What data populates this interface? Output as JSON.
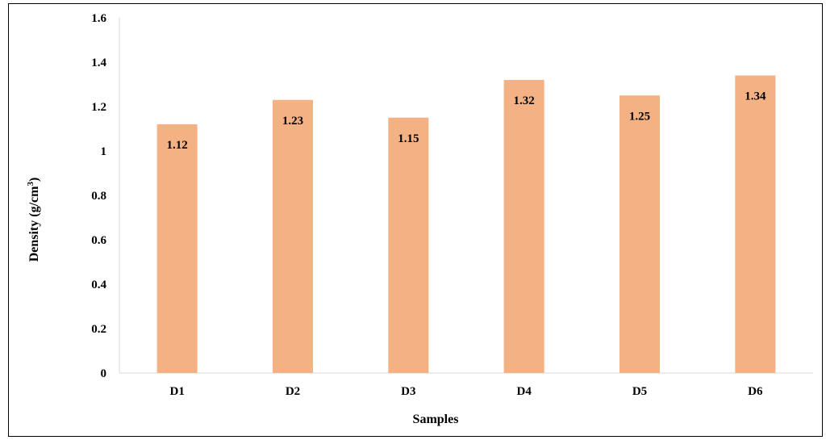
{
  "chart_data": {
    "type": "bar",
    "categories": [
      "D1",
      "D2",
      "D3",
      "D4",
      "D5",
      "D6"
    ],
    "values": [
      1.12,
      1.23,
      1.15,
      1.32,
      1.25,
      1.34
    ],
    "data_labels": [
      "1.12",
      "1.23",
      "1.15",
      "1.32",
      "1.25",
      "1.34"
    ],
    "xlabel": "Samples",
    "ylabel": "Density (g/cm³)",
    "ylabel_main": "Density (g/cm",
    "ylabel_sup": "3",
    "ylabel_end": ")",
    "ylim": [
      0,
      1.6
    ],
    "yticks": [
      0,
      0.2,
      0.4,
      0.6,
      0.8,
      1,
      1.2,
      1.4,
      1.6
    ],
    "ytick_labels": [
      "0",
      "0.2",
      "0.4",
      "0.6",
      "0.8",
      "1",
      "1.2",
      "1.4",
      "1.6"
    ],
    "grid": false,
    "legend": "none",
    "bar_color": "#f4b183"
  }
}
